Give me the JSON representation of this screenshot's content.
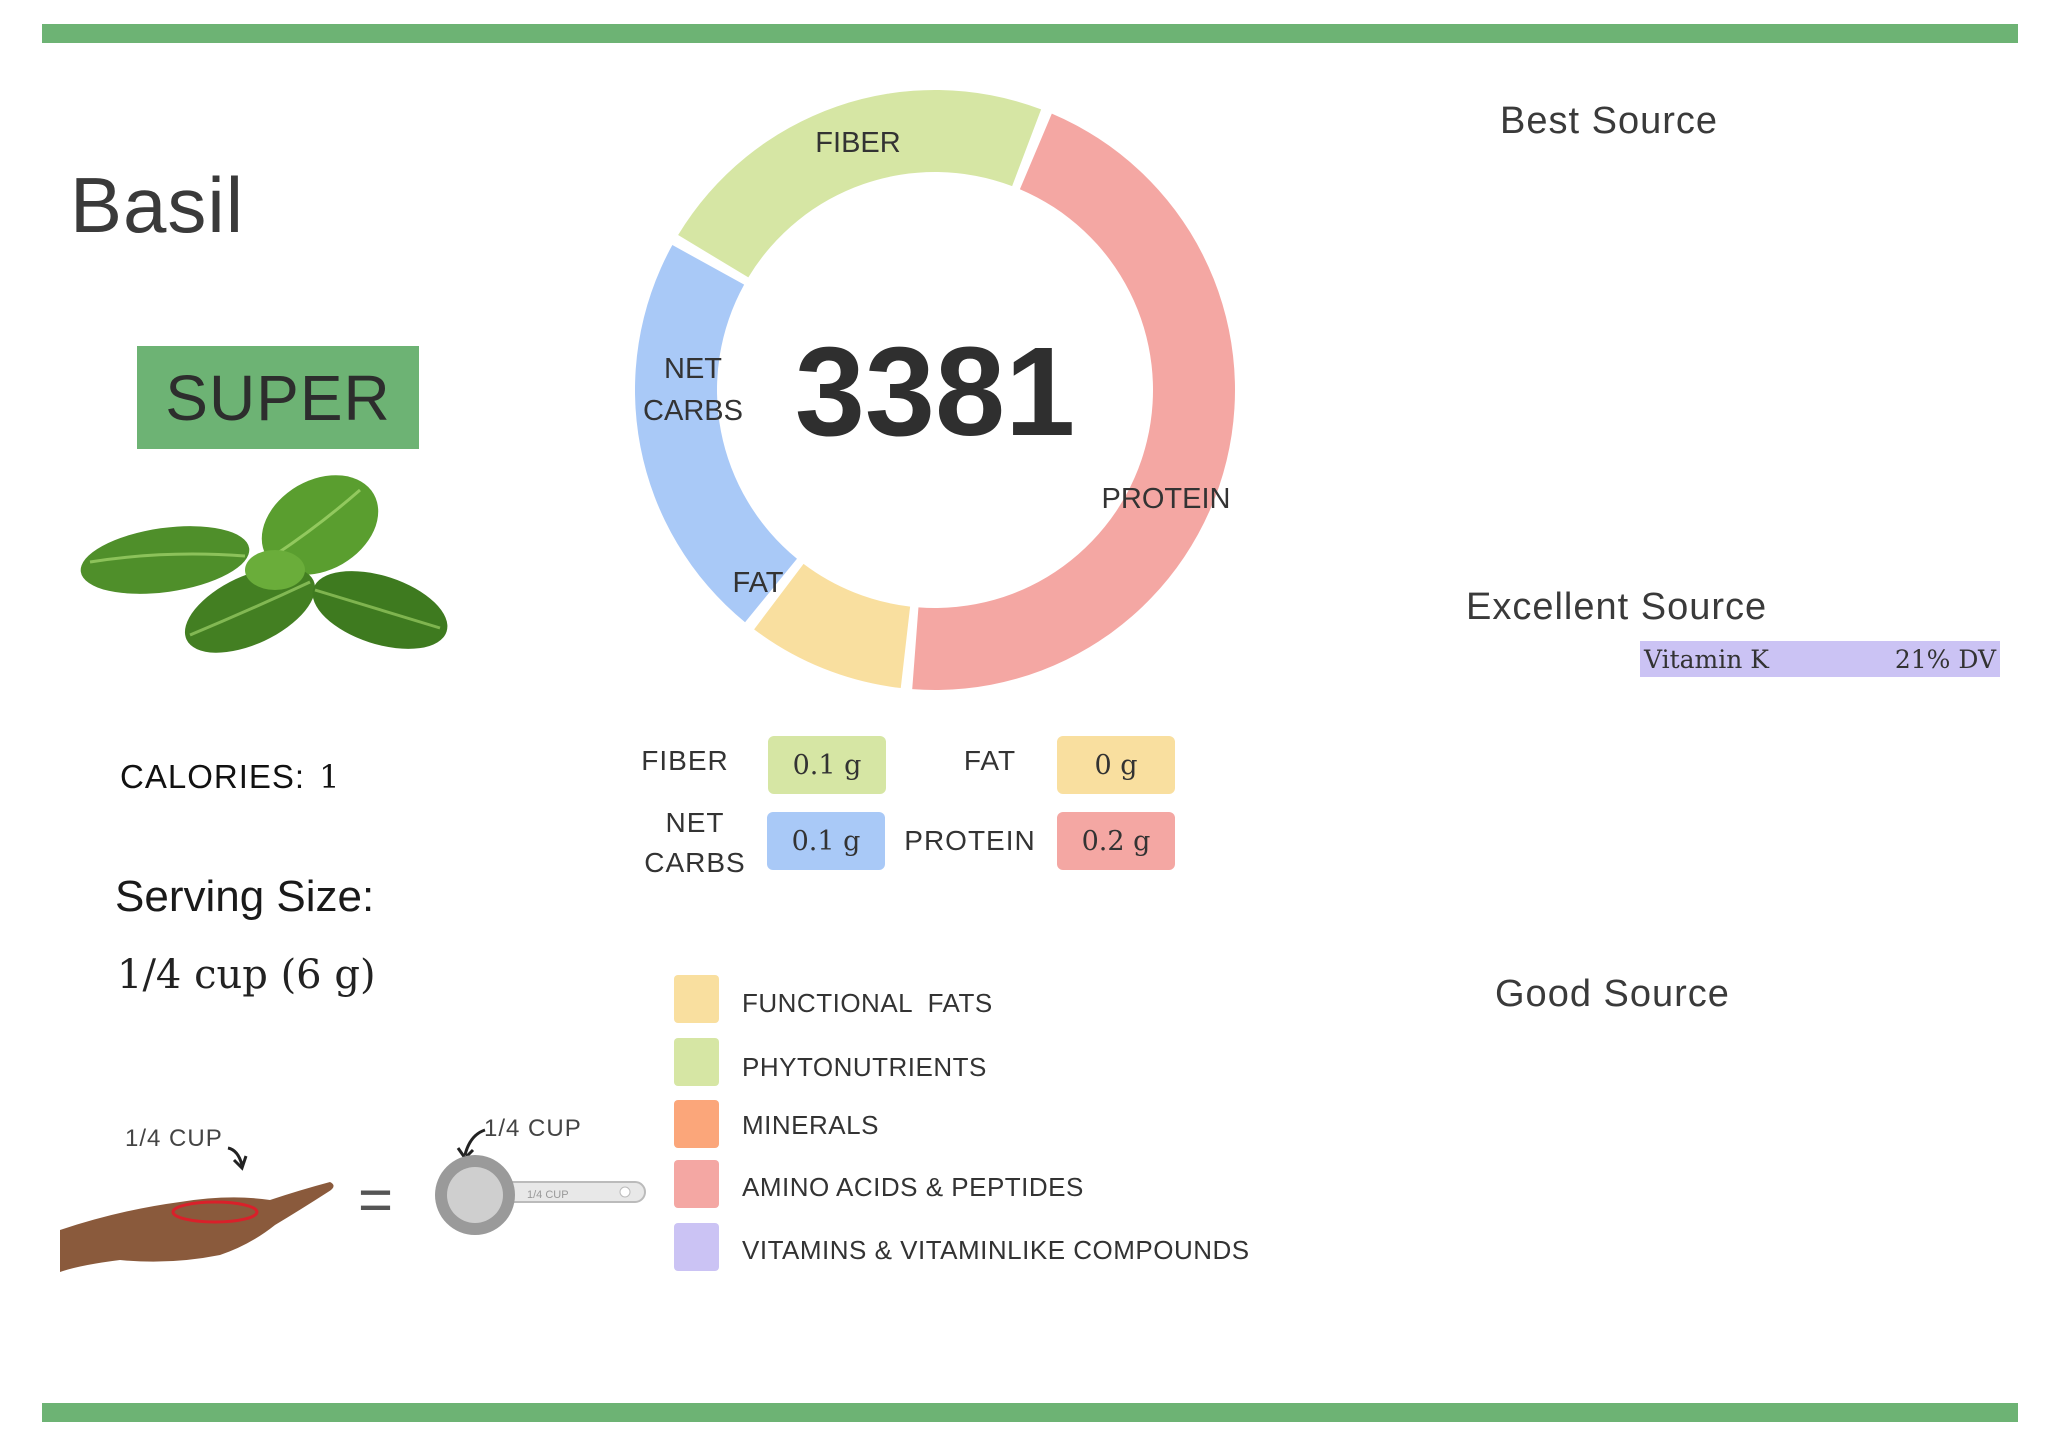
{
  "food": {
    "name": "Basil",
    "rating": "SUPER"
  },
  "calories": {
    "label": "CALORIES:",
    "value": "1"
  },
  "serving": {
    "label": "Serving Size:",
    "value": "1/4 cup (6 g)"
  },
  "measure": {
    "hand_label": "1/4 CUP",
    "cup_label": "1/4 CUP",
    "cup_handle_label": "1/4 CUP"
  },
  "chart_data": {
    "type": "pie",
    "variant": "donut",
    "center_value": "3381",
    "slices": [
      {
        "label": "FIBER",
        "value": 0.1,
        "color": "#d6e6a4"
      },
      {
        "label": "PROTEIN",
        "value": 0.2,
        "color": "#f4a7a3"
      },
      {
        "label": "FAT",
        "value": 0.04,
        "color": "#f9df9f"
      },
      {
        "label": "NET CARBS",
        "value": 0.1,
        "color": "#a9c9f7"
      }
    ],
    "net_carbs_label_lines": [
      "NET",
      "CARBS"
    ]
  },
  "macros": {
    "fiber": {
      "label": "FIBER",
      "value": "0.1 g",
      "color": "#d6e6a4"
    },
    "fat": {
      "label": "FAT",
      "value": "0 g",
      "color": "#f9df9f"
    },
    "net_carbs": {
      "label_line1": "NET",
      "label_line2": "CARBS",
      "value": "0.1 g",
      "color": "#a9c9f7"
    },
    "protein": {
      "label": "PROTEIN",
      "value": "0.2 g",
      "color": "#f4a7a3"
    }
  },
  "legend": [
    {
      "label": "FUNCTIONAL  FATS",
      "color": "#f9df9f"
    },
    {
      "label": "PHYTONUTRIENTS",
      "color": "#d6e6a4"
    },
    {
      "label": "MINERALS",
      "color": "#fba67a"
    },
    {
      "label": "AMINO ACIDS & PEPTIDES",
      "color": "#f4a7a3"
    },
    {
      "label": "VITAMINS & VITAMINLIKE COMPOUNDS",
      "color": "#cbc3f4"
    }
  ],
  "sources": {
    "best": {
      "heading": "Best Source"
    },
    "excellent": {
      "heading": "Excellent Source",
      "items": [
        {
          "name": "Vitamin K",
          "dv": "21% DV"
        }
      ]
    },
    "good": {
      "heading": "Good Source"
    }
  },
  "colors": {
    "accent": "#6db374"
  }
}
